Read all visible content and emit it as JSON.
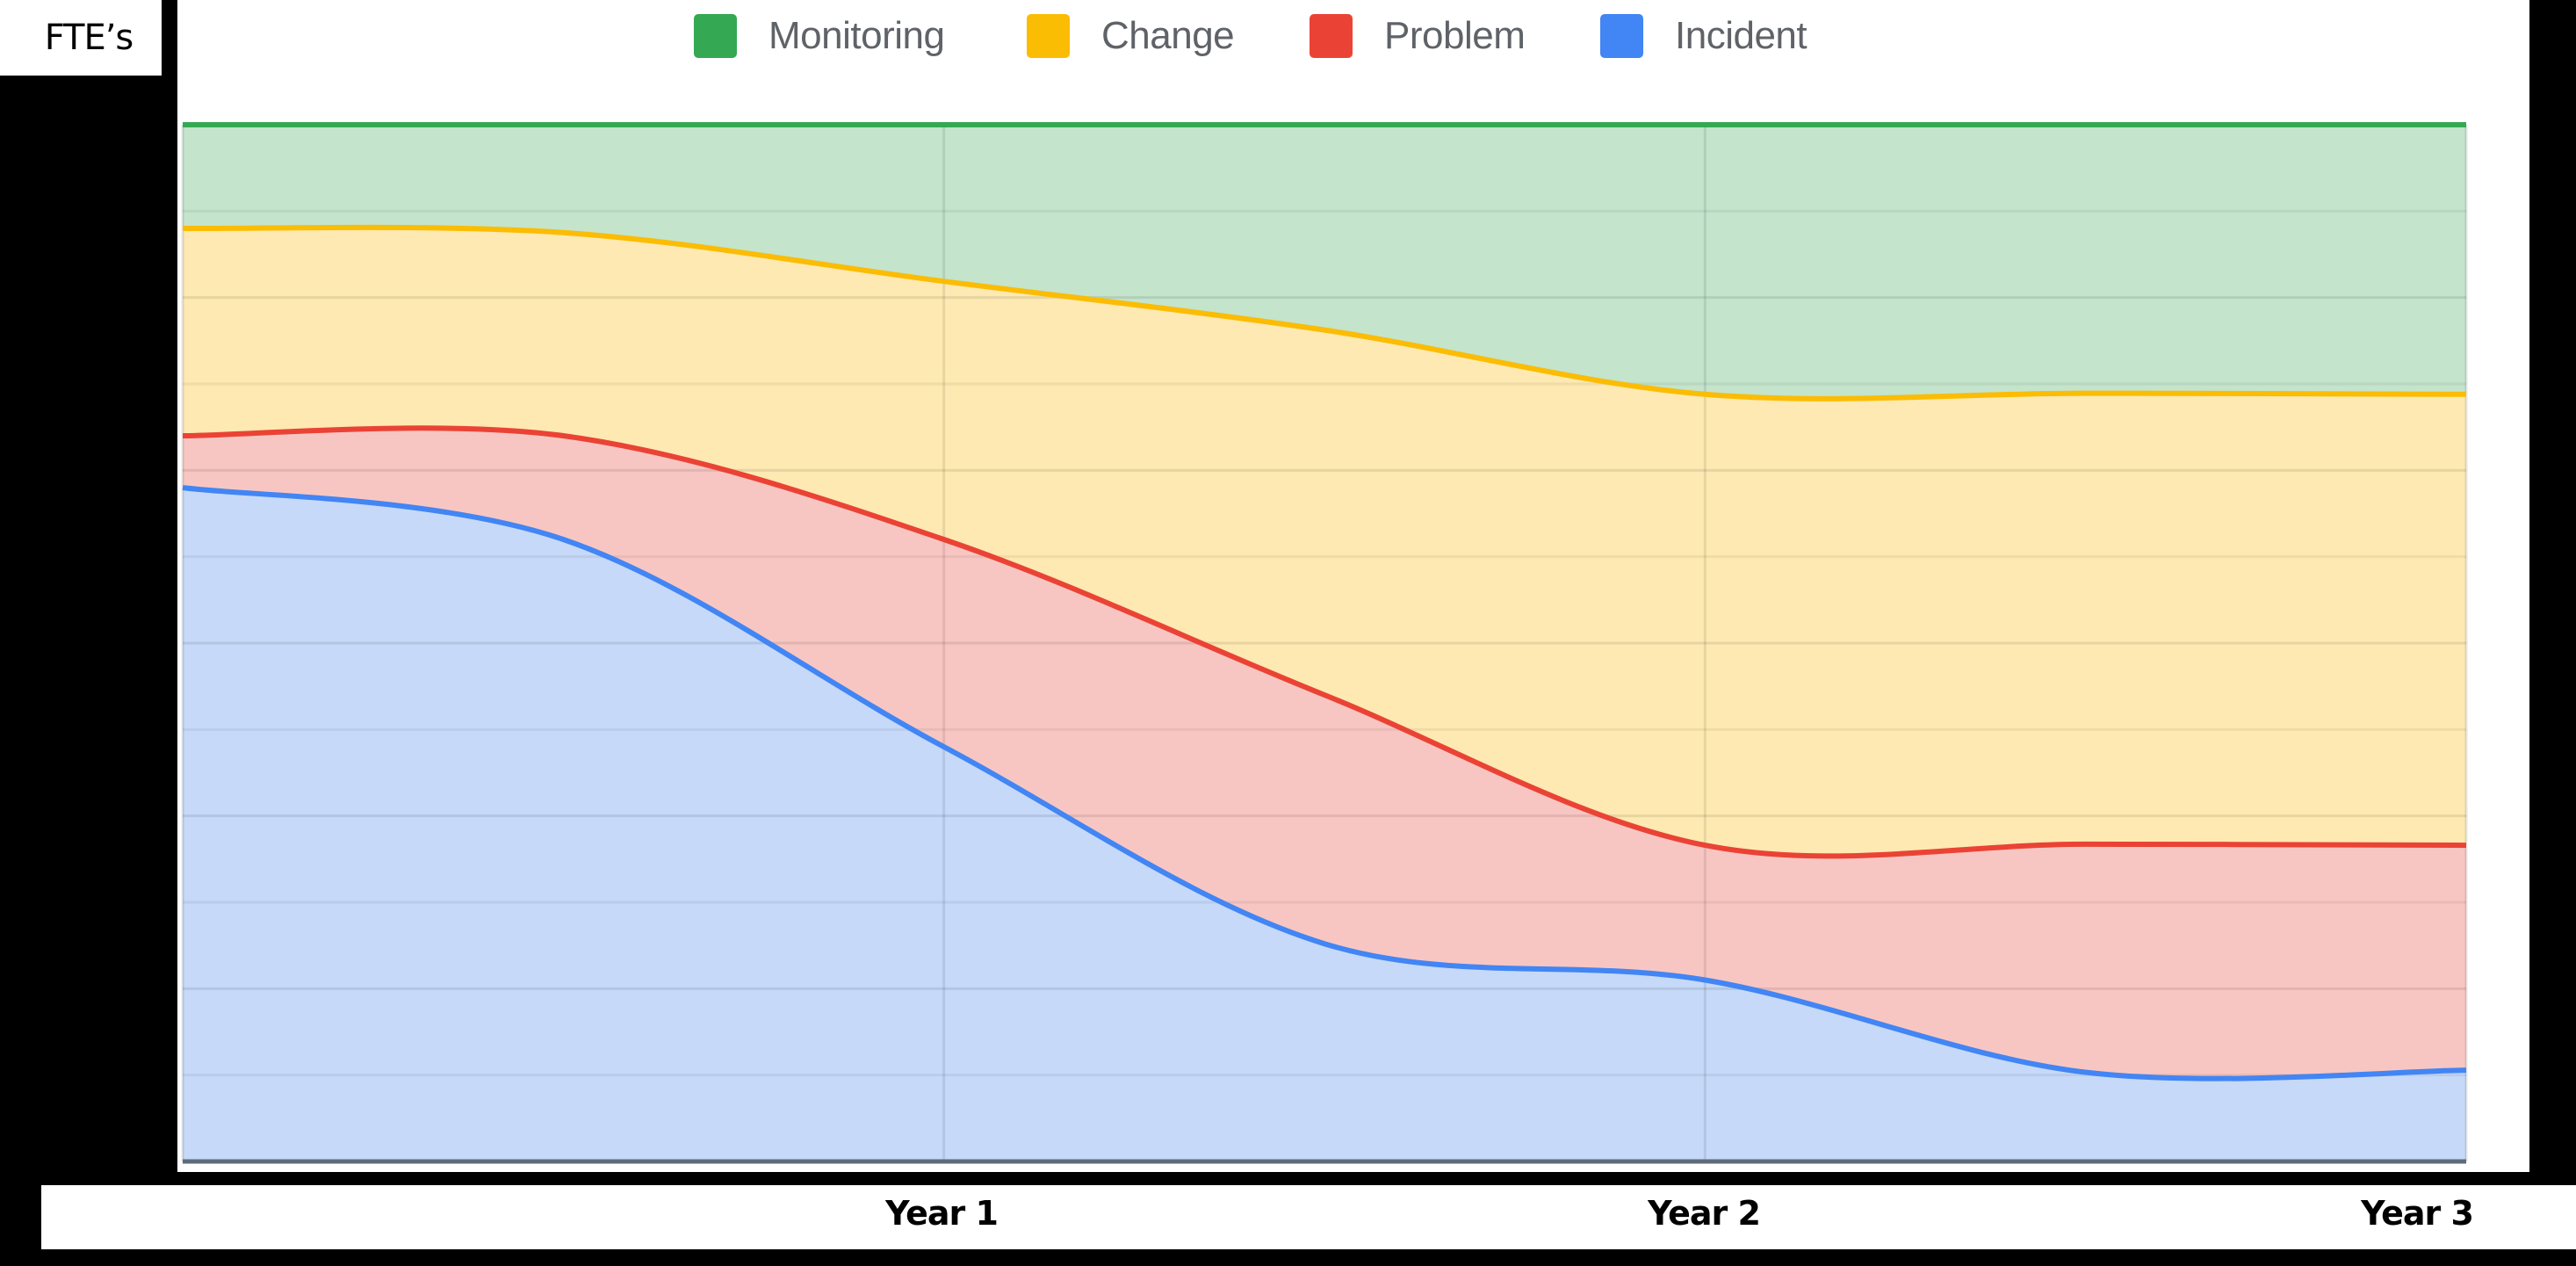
{
  "yaxis": {
    "label": "FTE’s"
  },
  "legend": [
    {
      "name": "Monitoring",
      "color": "#34a853",
      "fill": "#c4e4cc",
      "x": 588
    },
    {
      "name": "Change",
      "color": "#fbbc04",
      "fill": "#fde9b1",
      "x": 967
    },
    {
      "name": "Problem",
      "color": "#ea4335",
      "fill": "#f8c6c2",
      "x": 1289
    },
    {
      "name": "Incident",
      "color": "#4285f4",
      "fill": "#c6d9f8",
      "x": 1620
    }
  ],
  "xaxis": {
    "ticks": [
      {
        "label": "Year 1",
        "x": 1025
      },
      {
        "label": "Year 2",
        "x": 1893
      },
      {
        "label": "Year 3",
        "x": 2705
      }
    ]
  },
  "chart_data": {
    "type": "area",
    "stacked": true,
    "smoothed": true,
    "title": "",
    "xlabel": "",
    "ylabel": "FTE's",
    "x": [
      0,
      0.5,
      1,
      1.5,
      2,
      2.5,
      3
    ],
    "x_tick_labels": {
      "1": "Year 1",
      "2": "Year 2",
      "3": "Year 3"
    },
    "ylim": [
      0,
      100
    ],
    "y_unit": "percent of total FTE (stacked, estimated from gridlines)",
    "grid": {
      "horizontal_lines": 12,
      "vertical_lines_at": [
        1,
        2
      ]
    },
    "legend_position": "top",
    "series": [
      {
        "name": "Incident",
        "color": "#4285f4",
        "values": [
          65,
          60,
          40,
          21,
          17.5,
          8.6,
          8.8
        ]
      },
      {
        "name": "Problem",
        "color": "#ea4335",
        "values": [
          5,
          10,
          20,
          24,
          13,
          22,
          21.7
        ]
      },
      {
        "name": "Change",
        "color": "#fbbc04",
        "values": [
          20,
          19.6,
          24.9,
          35.2,
          43.5,
          43.5,
          43.5
        ]
      },
      {
        "name": "Monitoring",
        "color": "#34a853",
        "values": [
          10,
          10.4,
          15.1,
          19.8,
          26,
          25.9,
          26
        ]
      }
    ]
  }
}
